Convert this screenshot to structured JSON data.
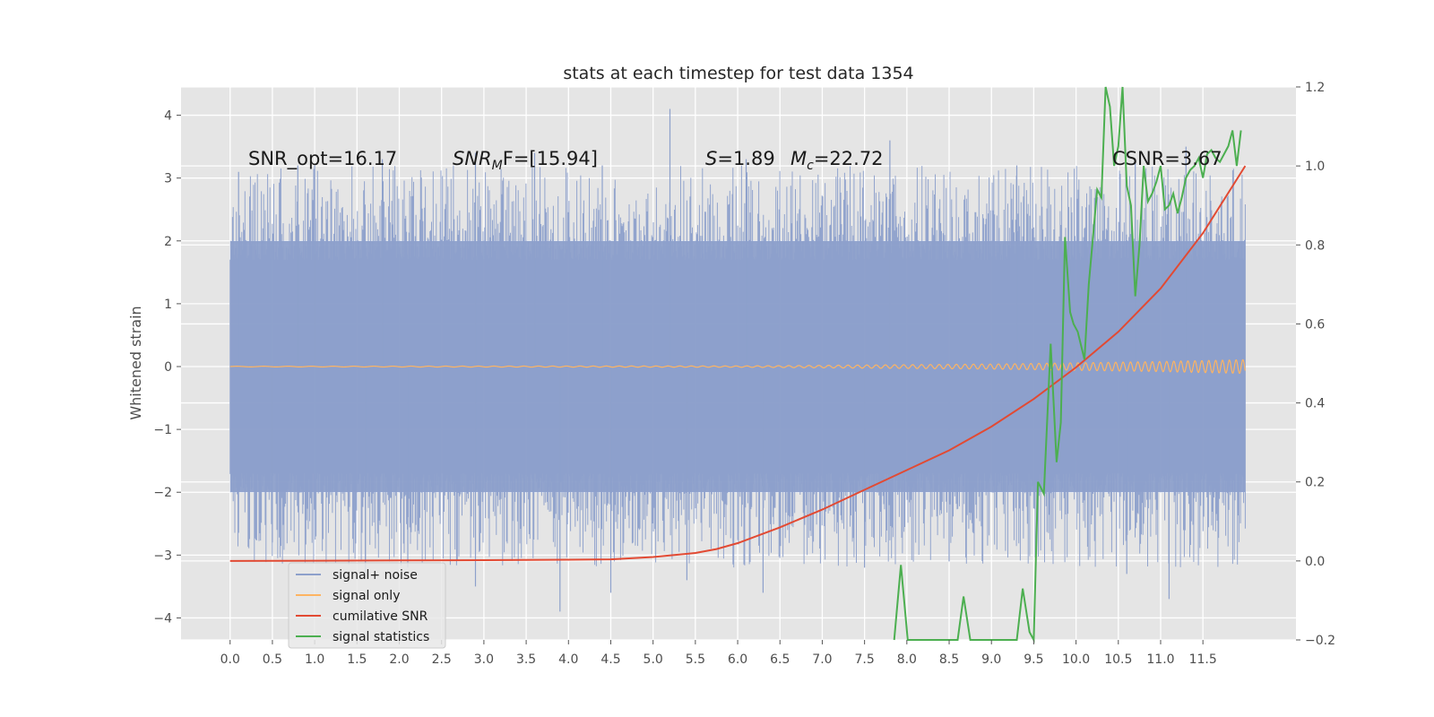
{
  "chart_data": {
    "type": "line",
    "title": "stats at each timestep for test data 1354",
    "ylabel": "Whitened strain",
    "xlim": [
      -0.58,
      12.6
    ],
    "ylim": [
      -4.35,
      4.45
    ],
    "y2lim": [
      -0.2,
      1.2
    ],
    "x_ticks": [
      0.0,
      0.5,
      1.0,
      1.5,
      2.0,
      2.5,
      3.0,
      3.5,
      4.0,
      4.5,
      5.0,
      5.5,
      6.0,
      6.5,
      7.0,
      7.5,
      8.0,
      8.5,
      9.0,
      9.5,
      10.0,
      10.5,
      11.0,
      11.5
    ],
    "x_tick_labels": [
      "0.0",
      "0.5",
      "1.0",
      "1.5",
      "2.0",
      "2.5",
      "3.0",
      "3.5",
      "4.0",
      "4.5",
      "5.0",
      "5.5",
      "6.0",
      "6.5",
      "7.0",
      "7.5",
      "8.0",
      "8.5",
      "9.0",
      "9.5",
      "10.0",
      "10.5",
      "11.0",
      "11.5"
    ],
    "y_ticks": [
      -4,
      -3,
      -2,
      -1,
      0,
      1,
      2,
      3,
      4
    ],
    "y_tick_labels": [
      "−4",
      "−3",
      "−2",
      "−1",
      "0",
      "1",
      "2",
      "3",
      "4"
    ],
    "y2_ticks": [
      -0.2,
      0.0,
      0.2,
      0.4,
      0.6,
      0.8,
      1.0,
      1.2
    ],
    "y2_tick_labels": [
      "−0.2",
      "0.0",
      "0.2",
      "0.4",
      "0.6",
      "0.8",
      "1.0",
      "1.2"
    ],
    "grid": true,
    "legend_position": "lower-left",
    "colors": {
      "background": "#e5e5e5",
      "grid": "#ffffff",
      "signal_noise": "#8da0cb",
      "signal_only": "#fdb462",
      "cumulative_snr": "#e24a33",
      "signal_statistics": "#4caf50"
    },
    "annotations": {
      "snr_opt": "SNR_opt=16.17",
      "snr_mf_main": "SNR",
      "snr_mf_sub": "M",
      "snr_mf_rest": "F=[15.94]",
      "s_var": "S",
      "s_val": "=1.89",
      "mc_var": "M",
      "mc_sub": "c",
      "mc_val": "=22.72",
      "csnr": "CSNR=3.67"
    },
    "series": [
      {
        "name": "signal+ noise",
        "axis": "left",
        "x_range": [
          0.0,
          12.0
        ],
        "envelope": {
          "typical_upper": 2.0,
          "typical_lower": -2.0,
          "peaks_upper": [
            [
              0.1,
              3.1
            ],
            [
              0.8,
              3.2
            ],
            [
              1.0,
              3.2
            ],
            [
              1.8,
              3.3
            ],
            [
              2.9,
              3.4
            ],
            [
              3.6,
              3.4
            ],
            [
              4.4,
              3.2
            ],
            [
              5.2,
              4.1
            ],
            [
              6.1,
              3.3
            ],
            [
              7.8,
              3.6
            ],
            [
              9.3,
              3.2
            ],
            [
              10.7,
              3.3
            ],
            [
              11.3,
              3.5
            ]
          ],
          "peaks_lower": [
            [
              0.5,
              -2.8
            ],
            [
              1.6,
              -3.3
            ],
            [
              2.1,
              -3.2
            ],
            [
              2.9,
              -3.5
            ],
            [
              3.9,
              -3.9
            ],
            [
              4.5,
              -3.6
            ],
            [
              5.4,
              -3.4
            ],
            [
              6.3,
              -3.6
            ],
            [
              7.5,
              -3.2
            ],
            [
              8.5,
              -3.1
            ],
            [
              10.6,
              -3.3
            ],
            [
              11.1,
              -3.7
            ]
          ]
        }
      },
      {
        "name": "signal only",
        "axis": "left",
        "x": [
          0.0,
          6.0,
          7.0,
          8.0,
          9.0,
          10.0,
          11.0,
          12.0
        ],
        "amplitude": [
          0.005,
          0.01,
          0.02,
          0.03,
          0.04,
          0.06,
          0.08,
          0.11
        ]
      },
      {
        "name": "cumilative SNR",
        "axis": "right",
        "x": [
          0.0,
          1.0,
          2.0,
          3.0,
          3.5,
          4.0,
          4.5,
          5.0,
          5.5,
          5.75,
          6.0,
          6.5,
          7.0,
          7.5,
          8.0,
          8.5,
          9.0,
          9.5,
          10.0,
          10.5,
          11.0,
          11.5,
          12.0
        ],
        "values": [
          0.0,
          0.0005,
          0.0012,
          0.002,
          0.0025,
          0.003,
          0.004,
          0.01,
          0.02,
          0.03,
          0.045,
          0.085,
          0.13,
          0.18,
          0.23,
          0.28,
          0.34,
          0.41,
          0.49,
          0.58,
          0.69,
          0.83,
          1.0
        ]
      },
      {
        "name": "signal statistics",
        "axis": "right",
        "x": [
          7.85,
          7.93,
          8.01,
          8.6,
          8.67,
          8.75,
          9.3,
          9.37,
          9.45,
          9.5,
          9.55,
          9.62,
          9.7,
          9.77,
          9.82,
          9.87,
          9.93,
          9.97,
          10.02,
          10.1,
          10.15,
          10.25,
          10.3,
          10.35,
          10.4,
          10.45,
          10.5,
          10.55,
          10.6,
          10.65,
          10.7,
          10.75,
          10.8,
          10.85,
          10.9,
          10.95,
          11.0,
          11.05,
          11.1,
          11.15,
          11.2,
          11.25,
          11.3,
          11.35,
          11.4,
          11.45,
          11.5,
          11.55,
          11.6,
          11.65,
          11.7,
          11.75,
          11.8,
          11.85,
          11.9,
          11.95
        ],
        "values": [
          -0.2,
          -0.01,
          -0.2,
          -0.2,
          -0.09,
          -0.2,
          -0.2,
          -0.07,
          -0.18,
          -0.2,
          0.2,
          0.17,
          0.55,
          0.25,
          0.35,
          0.82,
          0.63,
          0.6,
          0.58,
          0.51,
          0.7,
          0.94,
          0.92,
          1.2,
          1.15,
          1.0,
          1.05,
          1.2,
          0.95,
          0.9,
          0.67,
          0.8,
          1.0,
          0.91,
          0.93,
          0.96,
          1.0,
          0.89,
          0.9,
          0.93,
          0.88,
          0.92,
          0.97,
          0.99,
          1.0,
          1.02,
          0.97,
          1.03,
          1.04,
          1.02,
          1.01,
          1.03,
          1.05,
          1.09,
          1.0,
          1.09
        ]
      }
    ]
  }
}
